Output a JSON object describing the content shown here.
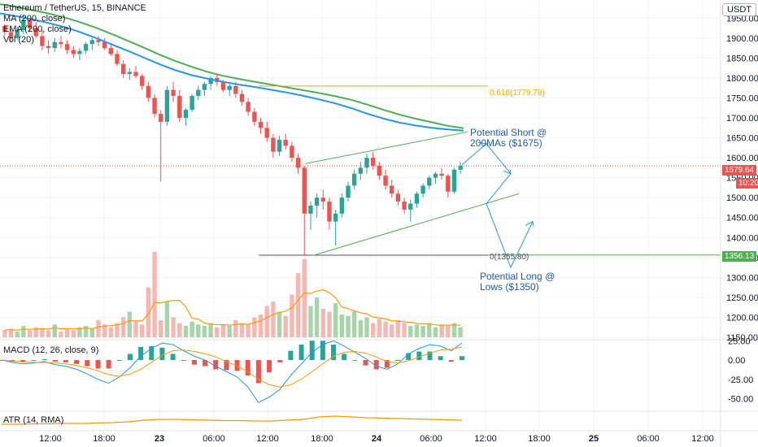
{
  "header": {
    "symbol": "Ethereum / TetherUS, 15, BINANCE",
    "ma_label": "MA (200, close)",
    "ema_label": "EMA (200, close)",
    "vol_label": "Vol (20)"
  },
  "currency": "USDT",
  "price_axis_ticks": [
    "1950.00",
    "1900.00",
    "1850.00",
    "1800.00",
    "1750.00",
    "1700.00",
    "1650.00",
    "1600.00",
    "1550.00",
    "1500.00",
    "1450.00",
    "1400.00",
    "1350.00",
    "1300.00",
    "1250.00",
    "1200.00",
    "1150.00"
  ],
  "last_price": "1579.64",
  "countdown": "10:20",
  "support_price": "1356.13",
  "time_axis_ticks": [
    "12:00",
    "18:00",
    "23",
    "06:00",
    "12:00",
    "18:00",
    "24",
    "06:00",
    "12:00",
    "18:00",
    "25",
    "06:00",
    "12:00"
  ],
  "fib": {
    "upper_label": "0.618(1779.78)",
    "lower_label": "0(1355.80)"
  },
  "annotations": {
    "short_line1": "Potential Short @",
    "short_line2": "200MAs ($1675)",
    "long_line1": "Potential Long @",
    "long_line2": "Lows ($1350)"
  },
  "macd": {
    "title": "MACD (12, 26, close, 9)",
    "ticks": [
      "25.00",
      "0.00",
      "-25.00",
      "-50.00"
    ]
  },
  "atr": {
    "title": "ATR (14, RMA)"
  },
  "colors": {
    "up": "#26a69a",
    "down": "#ef5350",
    "ma": "#4caf50",
    "ema": "#2196f3",
    "fib_upper": "#f7a600",
    "fib_lower": "#555555",
    "channel": "#4caf50",
    "arrow": "#2196f3",
    "last_price_bg": "#ef5350",
    "support_bg": "#4caf50"
  },
  "chart_data": {
    "type": "candlestick",
    "price_scale": [
      1150,
      1975
    ],
    "ohlc": [
      [
        1930,
        1935,
        1905,
        1915
      ],
      [
        1915,
        1925,
        1890,
        1900
      ],
      [
        1900,
        1928,
        1895,
        1920
      ],
      [
        1920,
        1960,
        1910,
        1945
      ],
      [
        1945,
        1950,
        1915,
        1925
      ],
      [
        1925,
        1940,
        1900,
        1905
      ],
      [
        1905,
        1920,
        1870,
        1880
      ],
      [
        1880,
        1895,
        1860,
        1875
      ],
      [
        1875,
        1900,
        1865,
        1890
      ],
      [
        1890,
        1905,
        1875,
        1885
      ],
      [
        1885,
        1895,
        1860,
        1870
      ],
      [
        1870,
        1880,
        1850,
        1860
      ],
      [
        1860,
        1875,
        1845,
        1868
      ],
      [
        1868,
        1890,
        1860,
        1885
      ],
      [
        1885,
        1900,
        1870,
        1895
      ],
      [
        1895,
        1905,
        1880,
        1890
      ],
      [
        1890,
        1900,
        1870,
        1875
      ],
      [
        1875,
        1885,
        1855,
        1860
      ],
      [
        1860,
        1870,
        1830,
        1835
      ],
      [
        1835,
        1845,
        1800,
        1810
      ],
      [
        1810,
        1825,
        1795,
        1815
      ],
      [
        1815,
        1830,
        1800,
        1805
      ],
      [
        1805,
        1810,
        1770,
        1780
      ],
      [
        1780,
        1790,
        1740,
        1750
      ],
      [
        1750,
        1760,
        1700,
        1710
      ],
      [
        1710,
        1720,
        1540,
        1690
      ],
      [
        1690,
        1780,
        1680,
        1770
      ],
      [
        1770,
        1790,
        1740,
        1755
      ],
      [
        1755,
        1770,
        1690,
        1700
      ],
      [
        1700,
        1725,
        1680,
        1720
      ],
      [
        1720,
        1760,
        1715,
        1755
      ],
      [
        1755,
        1780,
        1745,
        1770
      ],
      [
        1770,
        1790,
        1755,
        1785
      ],
      [
        1785,
        1805,
        1770,
        1800
      ],
      [
        1800,
        1810,
        1780,
        1790
      ],
      [
        1790,
        1795,
        1765,
        1770
      ],
      [
        1770,
        1785,
        1755,
        1780
      ],
      [
        1780,
        1790,
        1750,
        1760
      ],
      [
        1760,
        1770,
        1730,
        1740
      ],
      [
        1740,
        1750,
        1705,
        1715
      ],
      [
        1715,
        1725,
        1680,
        1690
      ],
      [
        1690,
        1700,
        1660,
        1675
      ],
      [
        1675,
        1690,
        1640,
        1650
      ],
      [
        1650,
        1660,
        1600,
        1615
      ],
      [
        1615,
        1655,
        1605,
        1645
      ],
      [
        1645,
        1660,
        1620,
        1630
      ],
      [
        1630,
        1640,
        1590,
        1600
      ],
      [
        1600,
        1610,
        1560,
        1575
      ],
      [
        1575,
        1580,
        1355,
        1460
      ],
      [
        1460,
        1490,
        1420,
        1480
      ],
      [
        1480,
        1510,
        1450,
        1500
      ],
      [
        1500,
        1520,
        1470,
        1490
      ],
      [
        1490,
        1500,
        1420,
        1440
      ],
      [
        1440,
        1470,
        1380,
        1460
      ],
      [
        1460,
        1510,
        1450,
        1500
      ],
      [
        1500,
        1540,
        1490,
        1530
      ],
      [
        1530,
        1570,
        1520,
        1560
      ],
      [
        1560,
        1590,
        1545,
        1575
      ],
      [
        1575,
        1610,
        1560,
        1600
      ],
      [
        1600,
        1615,
        1570,
        1580
      ],
      [
        1580,
        1590,
        1545,
        1555
      ],
      [
        1555,
        1570,
        1520,
        1530
      ],
      [
        1530,
        1545,
        1500,
        1510
      ],
      [
        1510,
        1520,
        1480,
        1490
      ],
      [
        1490,
        1500,
        1460,
        1470
      ],
      [
        1470,
        1495,
        1440,
        1485
      ],
      [
        1485,
        1515,
        1475,
        1510
      ],
      [
        1510,
        1535,
        1500,
        1530
      ],
      [
        1530,
        1555,
        1520,
        1550
      ],
      [
        1550,
        1565,
        1535,
        1560
      ],
      [
        1560,
        1575,
        1545,
        1555
      ],
      [
        1555,
        1560,
        1500,
        1515
      ],
      [
        1515,
        1575,
        1510,
        1570
      ],
      [
        1570,
        1590,
        1560,
        1580
      ]
    ],
    "ma200": [
      1985,
      1978,
      1970,
      1962,
      1952,
      1940,
      1926,
      1910,
      1893,
      1876,
      1858,
      1842,
      1828,
      1815,
      1805,
      1797,
      1790,
      1783,
      1776,
      1769,
      1762,
      1754,
      1745,
      1733,
      1720,
      1708,
      1698,
      1689,
      1680,
      1674
    ],
    "ema200": [
      1962,
      1955,
      1947,
      1938,
      1928,
      1915,
      1900,
      1884,
      1868,
      1851,
      1834,
      1819,
      1807,
      1798,
      1790,
      1783,
      1777,
      1770,
      1763,
      1755,
      1746,
      1736,
      1724,
      1710,
      1698,
      1688,
      1681,
      1675,
      1671,
      1668
    ],
    "volume": [
      5,
      6,
      4,
      8,
      5,
      7,
      6,
      5,
      9,
      4,
      6,
      5,
      7,
      8,
      6,
      12,
      9,
      7,
      10,
      14,
      18,
      11,
      9,
      35,
      60,
      12,
      25,
      14,
      10,
      8,
      11,
      9,
      8,
      10,
      7,
      9,
      8,
      12,
      10,
      9,
      14,
      16,
      22,
      25,
      18,
      15,
      30,
      45,
      55,
      22,
      28,
      20,
      18,
      24,
      16,
      15,
      18,
      12,
      14,
      10,
      13,
      11,
      9,
      12,
      10,
      8,
      9,
      8,
      10,
      7,
      9,
      8,
      10,
      7
    ],
    "macd_line": [
      0,
      -3,
      -5,
      -4,
      -2,
      -6,
      -8,
      -12,
      -18,
      -25,
      -30,
      -22,
      -10,
      5,
      15,
      22,
      20,
      12,
      5,
      0,
      -8,
      -15,
      -22,
      -35,
      -55,
      -48,
      -38,
      -20,
      -5,
      10,
      20,
      25,
      18,
      10,
      2,
      -8,
      -12,
      -5,
      8,
      15,
      20,
      18,
      12,
      22
    ],
    "signal_line": [
      0,
      -1,
      -2,
      -3,
      -3,
      -4,
      -5,
      -7,
      -10,
      -14,
      -19,
      -21,
      -18,
      -12,
      -3,
      6,
      12,
      13,
      11,
      8,
      4,
      -2,
      -8,
      -15,
      -25,
      -32,
      -35,
      -32,
      -25,
      -15,
      -5,
      5,
      10,
      11,
      9,
      4,
      -2,
      -4,
      -1,
      4,
      9,
      13,
      14,
      17
    ],
    "atr": [
      12,
      12,
      13,
      13,
      14,
      14,
      15,
      16,
      18,
      22,
      24,
      24,
      23,
      22,
      21,
      21,
      20,
      20,
      22,
      24,
      30,
      32,
      30,
      28,
      27,
      26,
      25,
      24,
      23,
      22
    ]
  }
}
